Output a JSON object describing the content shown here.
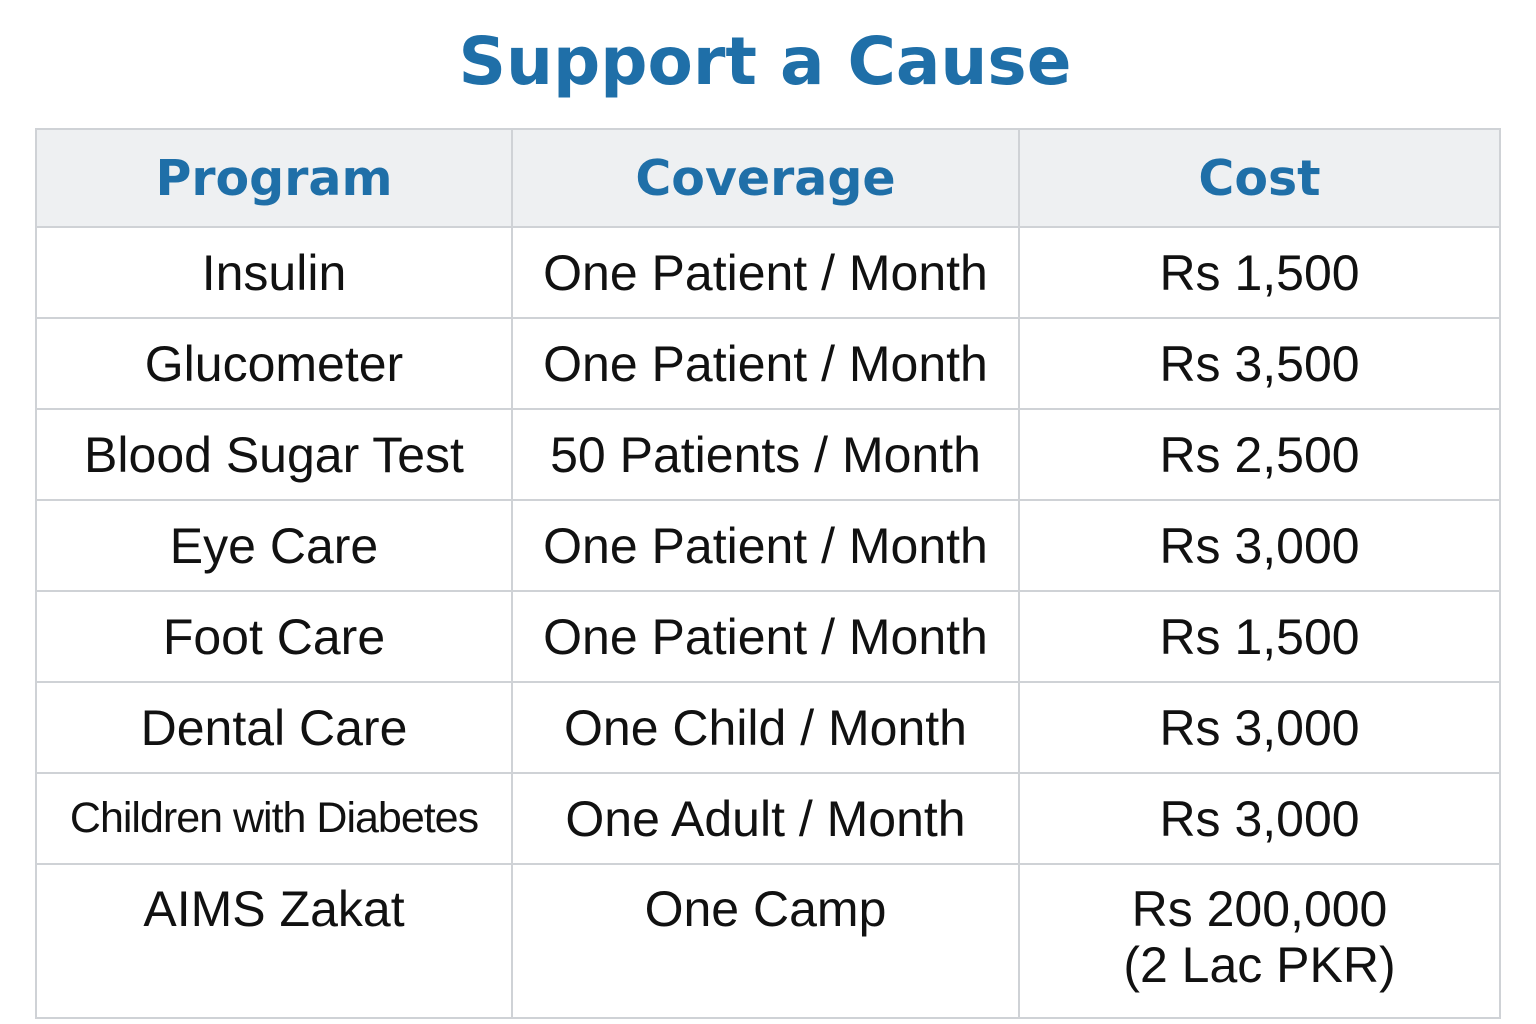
{
  "title": "Support a Cause",
  "columns": {
    "program": "Program",
    "coverage": "Coverage",
    "cost": "Cost"
  },
  "rows": [
    {
      "program": "Insulin",
      "coverage": "One Patient / Month",
      "cost": "Rs 1,500"
    },
    {
      "program": "Glucometer",
      "coverage": "One Patient / Month",
      "cost": "Rs 3,500"
    },
    {
      "program": "Blood Sugar Test",
      "coverage": "50 Patients / Month",
      "cost": "Rs 2,500"
    },
    {
      "program": "Eye Care",
      "coverage": "One Patient / Month",
      "cost": "Rs 3,000"
    },
    {
      "program": "Foot Care",
      "coverage": "One Patient / Month",
      "cost": "Rs 1,500"
    },
    {
      "program": "Dental Care",
      "coverage": "One Child / Month",
      "cost": "Rs 3,000"
    },
    {
      "program": "Children with Diabetes",
      "coverage": "One Adult / Month",
      "cost": "Rs 3,000"
    },
    {
      "program": "AIMS Zakat",
      "coverage": "One Camp",
      "cost": "Rs 200,000",
      "cost_note": "(2 Lac PKR)"
    }
  ]
}
